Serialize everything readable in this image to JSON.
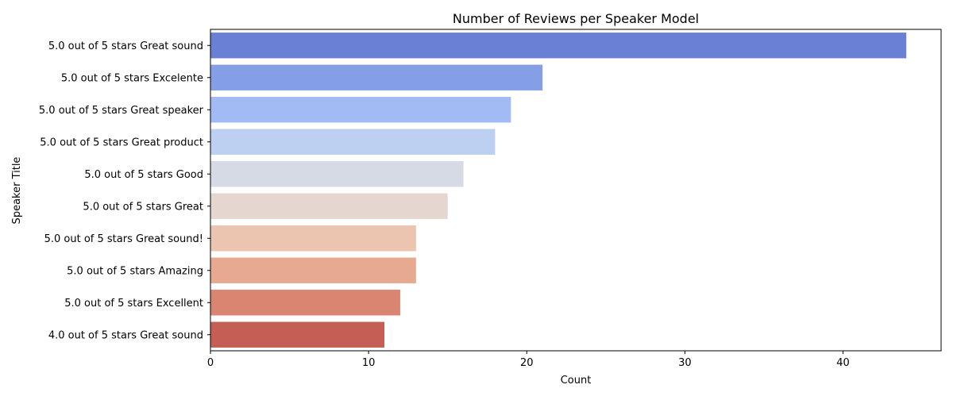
{
  "chart_data": {
    "type": "bar",
    "orientation": "horizontal",
    "title": "Number of Reviews per Speaker Model",
    "xlabel": "Count",
    "ylabel": "Speaker Title",
    "xlim": [
      0,
      46.2
    ],
    "xticks": [
      0,
      10,
      20,
      30,
      40
    ],
    "grid": false,
    "categories": [
      "5.0 out of 5 stars Great sound",
      "5.0 out of 5 stars Excelente",
      "5.0 out of 5 stars Great speaker",
      "5.0 out of 5 stars Great product",
      "5.0 out of 5 stars Good",
      "5.0 out of 5 stars Great",
      "5.0 out of 5 stars Great sound!",
      "5.0 out of 5 stars Amazing",
      "5.0 out of 5 stars Excellent",
      "4.0 out of 5 stars Great sound"
    ],
    "values": [
      44,
      21,
      19,
      18,
      16,
      15,
      13,
      13,
      12,
      11
    ],
    "colors": [
      "#6a80d5",
      "#859fe6",
      "#a2bbf4",
      "#bdd0f2",
      "#d5dae4",
      "#e5d7cf",
      "#ecc5b0",
      "#e8a991",
      "#da8571",
      "#c55f56"
    ]
  }
}
